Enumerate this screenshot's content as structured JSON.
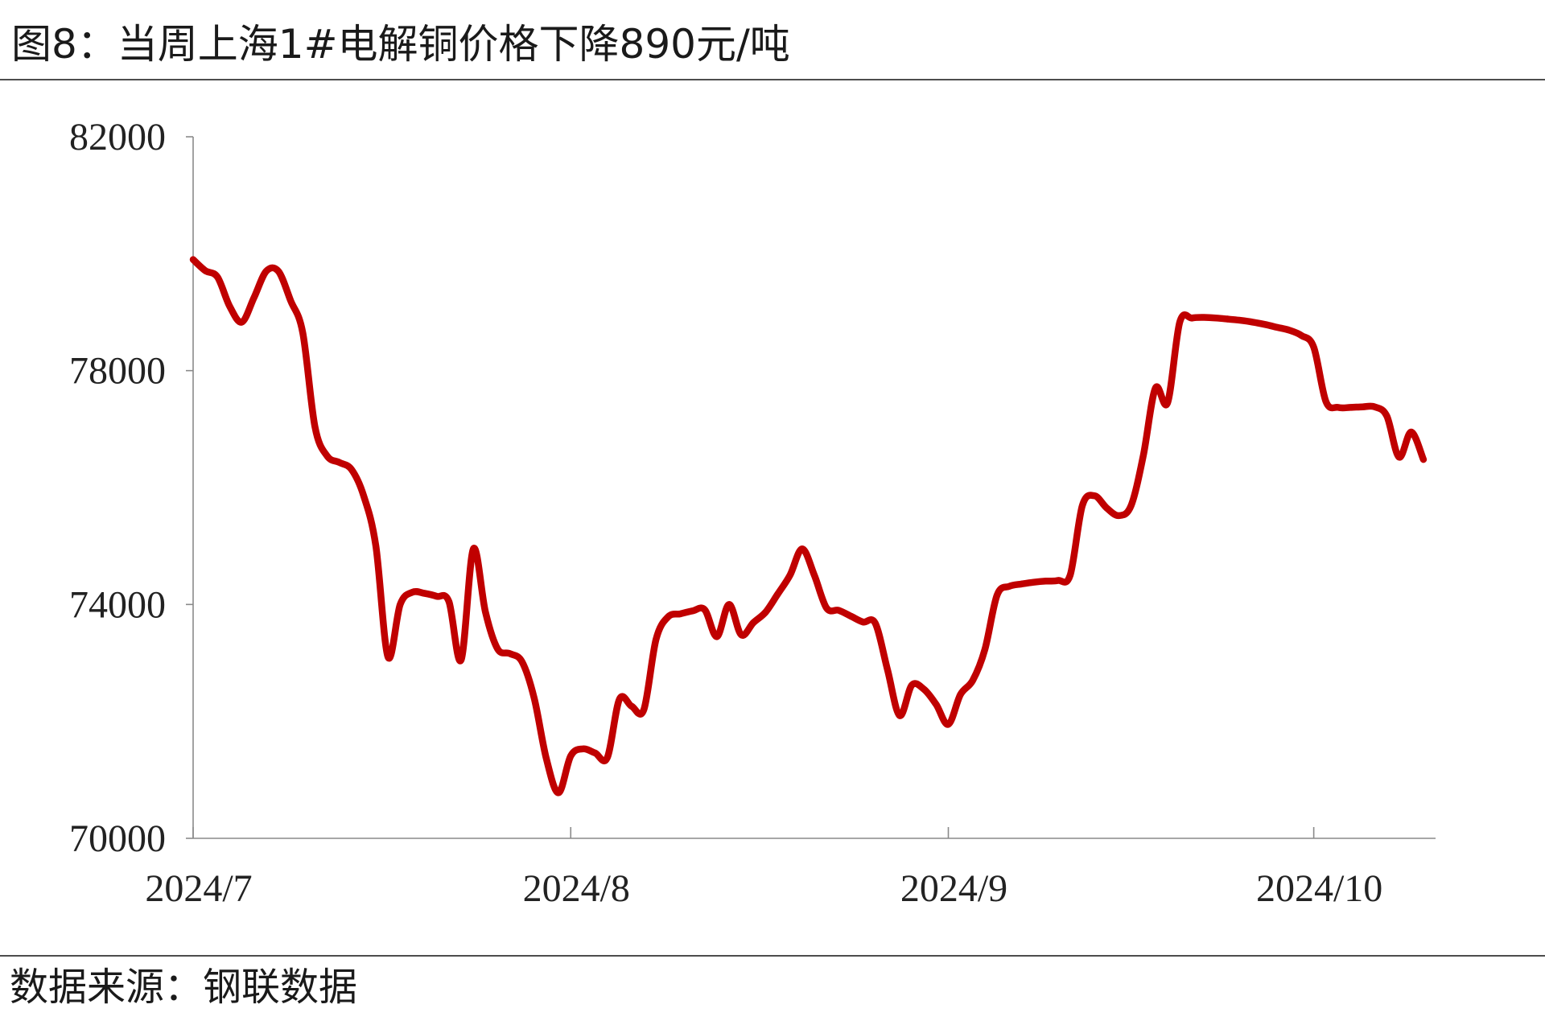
{
  "source": "数据来源：钢联数据",
  "chart_data": {
    "type": "line",
    "title": "图8：当周上海1#电解铜价格下降890元/吨",
    "xlabel": "",
    "ylabel": "",
    "ylim": [
      70000,
      82000
    ],
    "yticks": [
      70000,
      74000,
      78000,
      82000
    ],
    "xlim": [
      "2024-07-01",
      "2024-10-11"
    ],
    "xticks": [
      {
        "date": "2024-07-01",
        "label": "2024/7"
      },
      {
        "date": "2024-08-01",
        "label": "2024/8"
      },
      {
        "date": "2024-09-01",
        "label": "2024/9"
      },
      {
        "date": "2024-10-01",
        "label": "2024/10"
      }
    ],
    "grid": false,
    "legend": "none",
    "axis_color": "#8a8a8a",
    "series": [
      {
        "color": "#c00000",
        "smooth": true,
        "x": [
          "2024-07-01",
          "2024-07-02",
          "2024-07-03",
          "2024-07-04",
          "2024-07-05",
          "2024-07-06",
          "2024-07-07",
          "2024-07-08",
          "2024-07-09",
          "2024-07-10",
          "2024-07-11",
          "2024-07-12",
          "2024-07-13",
          "2024-07-14",
          "2024-07-15",
          "2024-07-16",
          "2024-07-17",
          "2024-07-18",
          "2024-07-19",
          "2024-07-20",
          "2024-07-21",
          "2024-07-22",
          "2024-07-23",
          "2024-07-24",
          "2024-07-25",
          "2024-07-26",
          "2024-07-27",
          "2024-07-28",
          "2024-07-29",
          "2024-07-30",
          "2024-07-31",
          "2024-08-01",
          "2024-08-02",
          "2024-08-03",
          "2024-08-04",
          "2024-08-05",
          "2024-08-06",
          "2024-08-07",
          "2024-08-08",
          "2024-08-09",
          "2024-08-10",
          "2024-08-11",
          "2024-08-12",
          "2024-08-13",
          "2024-08-14",
          "2024-08-15",
          "2024-08-16",
          "2024-08-17",
          "2024-08-18",
          "2024-08-19",
          "2024-08-20",
          "2024-08-21",
          "2024-08-22",
          "2024-08-23",
          "2024-08-24",
          "2024-08-25",
          "2024-08-26",
          "2024-08-27",
          "2024-08-28",
          "2024-08-29",
          "2024-08-30",
          "2024-08-31",
          "2024-09-01",
          "2024-09-02",
          "2024-09-03",
          "2024-09-04",
          "2024-09-05",
          "2024-09-06",
          "2024-09-07",
          "2024-09-08",
          "2024-09-09",
          "2024-09-10",
          "2024-09-11",
          "2024-09-12",
          "2024-09-13",
          "2024-09-14",
          "2024-09-15",
          "2024-09-16",
          "2024-09-17",
          "2024-09-18",
          "2024-09-19",
          "2024-09-20",
          "2024-09-21",
          "2024-09-22",
          "2024-09-23",
          "2024-09-24",
          "2024-09-25",
          "2024-09-26",
          "2024-09-27",
          "2024-09-28",
          "2024-09-29",
          "2024-09-30",
          "2024-10-01",
          "2024-10-02",
          "2024-10-03",
          "2024-10-04",
          "2024-10-05",
          "2024-10-06",
          "2024-10-07",
          "2024-10-08",
          "2024-10-09",
          "2024-10-10"
        ],
        "values": [
          79900,
          79710,
          79600,
          79100,
          78830,
          79250,
          79700,
          79700,
          79200,
          78650,
          77040,
          76540,
          76430,
          76310,
          75860,
          75000,
          73100,
          74000,
          74210,
          74190,
          74140,
          74050,
          73050,
          74950,
          73870,
          73240,
          73160,
          73020,
          72400,
          71360,
          70780,
          71410,
          71530,
          71460,
          71380,
          72380,
          72260,
          72200,
          73400,
          73790,
          73840,
          73890,
          73910,
          73450,
          74000,
          73480,
          73690,
          73870,
          74180,
          74500,
          74950,
          74500,
          73940,
          73900,
          73800,
          73700,
          73680,
          72890,
          72100,
          72620,
          72550,
          72290,
          71950,
          72460,
          72700,
          73230,
          74160,
          74310,
          74350,
          74380,
          74400,
          74410,
          74500,
          75690,
          75860,
          75650,
          75520,
          75690,
          76540,
          77700,
          77450,
          78830,
          78900,
          78910,
          78900,
          78880,
          78860,
          78830,
          78790,
          78740,
          78690,
          78600,
          78400,
          77470,
          77370,
          77370,
          77380,
          77380,
          77220,
          76520,
          76950,
          76480
        ]
      }
    ]
  }
}
